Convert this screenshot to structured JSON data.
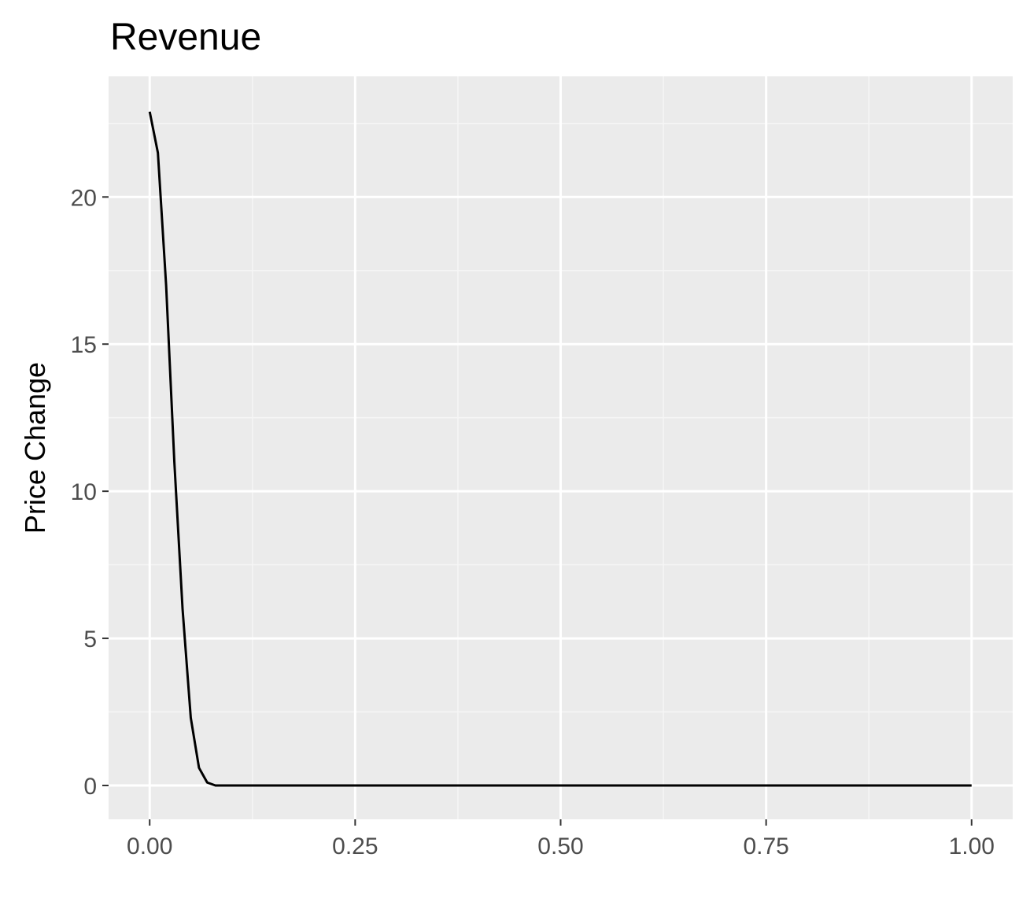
{
  "chart_data": {
    "type": "line",
    "title": "Revenue",
    "xlabel": "",
    "ylabel": "Price Change",
    "xlim": [
      -0.05,
      1.05
    ],
    "ylim": [
      -1.15,
      24.1
    ],
    "x_ticks": [
      {
        "value": 0.0,
        "label": "0.00"
      },
      {
        "value": 0.25,
        "label": "0.25"
      },
      {
        "value": 0.5,
        "label": "0.50"
      },
      {
        "value": 0.75,
        "label": "0.75"
      },
      {
        "value": 1.0,
        "label": "1.00"
      }
    ],
    "y_ticks": [
      {
        "value": 0,
        "label": "0"
      },
      {
        "value": 5,
        "label": "5"
      },
      {
        "value": 10,
        "label": "10"
      },
      {
        "value": 15,
        "label": "15"
      },
      {
        "value": 20,
        "label": "20"
      }
    ],
    "x_minor_ticks": [
      0.125,
      0.375,
      0.625,
      0.875
    ],
    "y_minor_ticks": [
      2.5,
      7.5,
      12.5,
      17.5,
      22.5
    ],
    "grid": true,
    "series": [
      {
        "color": "#000000",
        "points": [
          [
            0.0,
            22.9
          ],
          [
            0.01,
            21.5
          ],
          [
            0.02,
            17.0
          ],
          [
            0.03,
            11.0
          ],
          [
            0.04,
            6.0
          ],
          [
            0.05,
            2.3
          ],
          [
            0.06,
            0.6
          ],
          [
            0.07,
            0.1
          ],
          [
            0.08,
            0.0
          ],
          [
            0.1,
            0.0
          ],
          [
            0.25,
            0.0
          ],
          [
            0.5,
            0.0
          ],
          [
            0.75,
            0.0
          ],
          [
            1.0,
            0.0
          ]
        ]
      }
    ],
    "colors": {
      "panel_background": "#ebebeb",
      "grid_major": "#ffffff",
      "grid_minor": "#f5f5f5",
      "tick_text": "#4d4d4d",
      "tick_mark": "#333333"
    }
  }
}
